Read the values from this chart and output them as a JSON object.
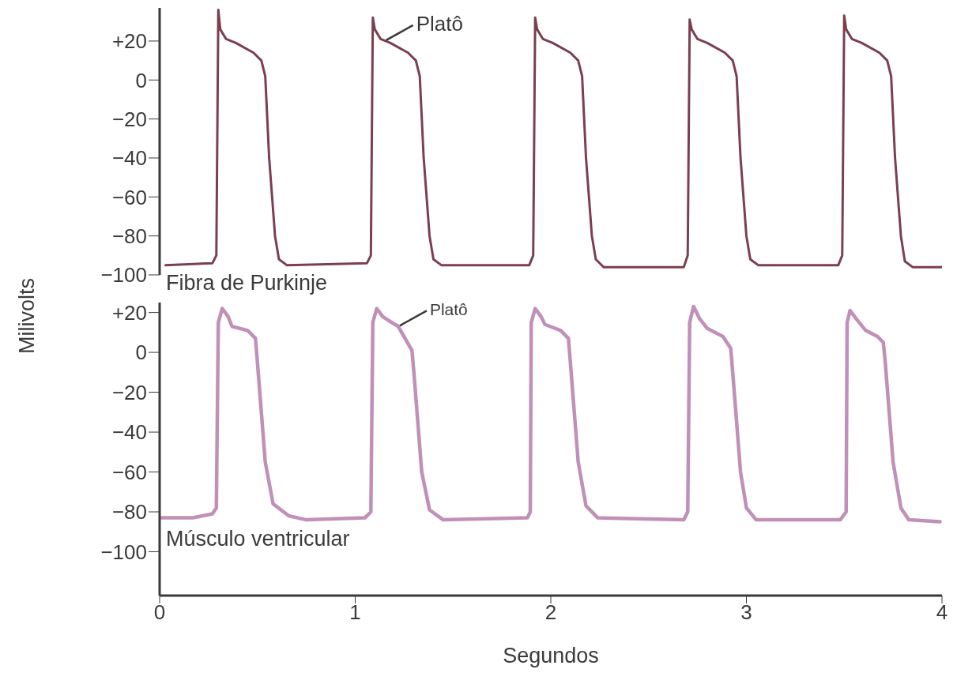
{
  "chart_data": [
    {
      "type": "line",
      "title": "Fibra de Purkinje",
      "ylabel": "Milivolts",
      "xlim": [
        0,
        4
      ],
      "xticks": [
        0,
        1,
        2,
        3,
        4
      ],
      "ylim": [
        -100,
        37
      ],
      "yticks": [
        {
          "value": -100,
          "label": "−100"
        },
        {
          "value": -80,
          "label": "−80"
        },
        {
          "value": -60,
          "label": "−60"
        },
        {
          "value": -40,
          "label": "−40"
        },
        {
          "value": -20,
          "label": "−20"
        },
        0,
        {
          "value": 20,
          "label": "+20"
        }
      ],
      "tick_labels": "y",
      "annotations": [
        {
          "text": "Platô",
          "x": 1.15,
          "y": 20
        }
      ],
      "series": [
        {
          "color": "#7b3f4f",
          "x": [
            0.03,
            0.27,
            0.29,
            0.3,
            0.31,
            0.34,
            0.39,
            0.48,
            0.52,
            0.54,
            0.56,
            0.59,
            0.61,
            0.65,
            1.06,
            1.08,
            1.09,
            1.1,
            1.13,
            1.18,
            1.27,
            1.31,
            1.33,
            1.35,
            1.38,
            1.4,
            1.44,
            1.89,
            1.91,
            1.92,
            1.93,
            1.96,
            2.01,
            2.1,
            2.14,
            2.16,
            2.18,
            2.21,
            2.23,
            2.27,
            2.68,
            2.7,
            2.71,
            2.72,
            2.75,
            2.8,
            2.89,
            2.93,
            2.95,
            2.97,
            3.0,
            3.02,
            3.06,
            3.47,
            3.49,
            3.5,
            3.51,
            3.54,
            3.59,
            3.68,
            3.72,
            3.74,
            3.76,
            3.79,
            3.81,
            3.85,
            4.0
          ],
          "values": [
            -95,
            -94,
            -90,
            36,
            26,
            21,
            19,
            14,
            10,
            2,
            -40,
            -80,
            -92,
            -95,
            -94,
            -90,
            32,
            26,
            21,
            19,
            14,
            10,
            2,
            -40,
            -80,
            -92,
            -95,
            -95,
            -90,
            32,
            26,
            21,
            19,
            14,
            10,
            2,
            -40,
            -80,
            -92,
            -96,
            -96,
            -90,
            31,
            26,
            21,
            19,
            14,
            10,
            2,
            -40,
            -80,
            -92,
            -95,
            -95,
            -90,
            33,
            26,
            21,
            19,
            14,
            10,
            2,
            -40,
            -80,
            -93,
            -96,
            -96
          ]
        }
      ]
    },
    {
      "type": "line",
      "title": "Músculo ventricular",
      "xlabel": "Segundos",
      "xlim": [
        0,
        4
      ],
      "xticks": [
        0,
        1,
        2,
        3,
        4
      ],
      "ylim": [
        -122,
        25
      ],
      "yticks": [
        {
          "value": -100,
          "label": "−100"
        },
        {
          "value": -80,
          "label": "−80"
        },
        {
          "value": -60,
          "label": "−60"
        },
        {
          "value": -40,
          "label": "−40"
        },
        {
          "value": -20,
          "label": "−20"
        },
        0,
        {
          "value": 20,
          "label": "+20"
        }
      ],
      "annotations": [
        {
          "text": "Platô",
          "x": 1.22,
          "y": 13
        }
      ],
      "series": [
        {
          "color": "#c190b8",
          "x": [
            0.01,
            0.17,
            0.27,
            0.29,
            0.3,
            0.32,
            0.35,
            0.37,
            0.45,
            0.49,
            0.5,
            0.54,
            0.58,
            0.66,
            0.75,
            1.05,
            1.08,
            1.09,
            1.11,
            1.14,
            1.17,
            1.22,
            1.29,
            1.3,
            1.34,
            1.38,
            1.45,
            1.88,
            1.895,
            1.9,
            1.92,
            1.95,
            1.97,
            2.05,
            2.09,
            2.1,
            2.14,
            2.18,
            2.24,
            2.68,
            2.7,
            2.71,
            2.73,
            2.76,
            2.8,
            2.88,
            2.92,
            2.93,
            2.97,
            3.0,
            3.05,
            3.48,
            3.51,
            3.515,
            3.53,
            3.56,
            3.61,
            3.67,
            3.7,
            3.71,
            3.75,
            3.79,
            3.83,
            3.99
          ],
          "values": [
            -83,
            -83,
            -81,
            -78,
            15,
            22,
            18,
            13,
            11,
            7,
            -5,
            -55,
            -76,
            -82,
            -84,
            -83,
            -80,
            15,
            22,
            18,
            16,
            13,
            1,
            -10,
            -60,
            -79,
            -84,
            -83,
            -80,
            15,
            22,
            18,
            14,
            11,
            7,
            -5,
            -55,
            -77,
            -83,
            -84,
            -80,
            15,
            23,
            17,
            12,
            8,
            2,
            -10,
            -60,
            -78,
            -84,
            -84,
            -80,
            15,
            21,
            17,
            11,
            8,
            5,
            -5,
            -55,
            -78,
            -84,
            -85
          ]
        }
      ]
    }
  ]
}
